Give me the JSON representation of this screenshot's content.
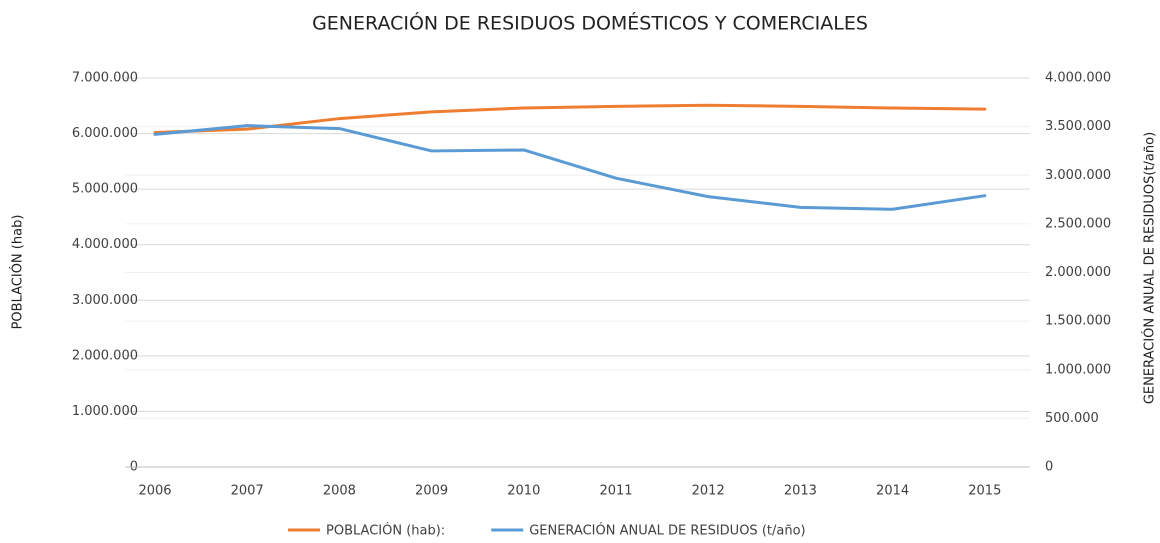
{
  "chart_data": {
    "type": "line",
    "title": "GENERACIÓN DE RESIDUOS DOMÉSTICOS Y COMERCIALES",
    "x_label": null,
    "y_label": "POBLACIÓN (hab)",
    "y2_label": "GENERACIÓN ANUAL DE RESIDUOS(t/año)",
    "categories": [
      "2006",
      "2007",
      "2008",
      "2009",
      "2010",
      "2011",
      "2012",
      "2013",
      "2014",
      "2015"
    ],
    "series": [
      {
        "name": "POBLACIÓN (hab):",
        "color": "#ed7d31",
        "axis": "y",
        "values": [
          6020000,
          6080000,
          6270000,
          6390000,
          6460000,
          6490000,
          6510000,
          6490000,
          6460000,
          6440000
        ]
      },
      {
        "name": "GENERACIÓN ANUAL DE RESIDUOS (t/año)",
        "color": "#5b9bd5",
        "axis": "y2",
        "values": [
          3420000,
          3510000,
          3480000,
          3250000,
          3260000,
          2970000,
          2780000,
          2670000,
          2650000,
          2790000
        ]
      }
    ],
    "ylim": [
      0,
      7000000
    ],
    "yticks": [
      0,
      {
        "value": 1000000,
        "label": "1.000.000"
      },
      {
        "value": 2000000,
        "label": "2.000.000"
      },
      {
        "value": 3000000,
        "label": "3.000.000"
      },
      {
        "value": 4000000,
        "label": "4.000.000"
      },
      {
        "value": 5000000,
        "label": "5.000.000"
      },
      {
        "value": 6000000,
        "label": "6.000.000"
      },
      {
        "value": 7000000,
        "label": "7.000.000"
      }
    ],
    "y2lim": [
      0,
      4000000
    ],
    "y2ticks": [
      0,
      {
        "value": 500000,
        "label": "500.000"
      },
      {
        "value": 1000000,
        "label": "1.000.000"
      },
      {
        "value": 1500000,
        "label": "1.500.000"
      },
      {
        "value": 2000000,
        "label": "2.000.000"
      },
      {
        "value": 2500000,
        "label": "2.500.000"
      },
      {
        "value": 3000000,
        "label": "3.000.000"
      },
      {
        "value": 3500000,
        "label": "3.500.000"
      },
      {
        "value": 4000000,
        "label": "4.000.000"
      }
    ],
    "grid": true,
    "legend": "bottom"
  }
}
